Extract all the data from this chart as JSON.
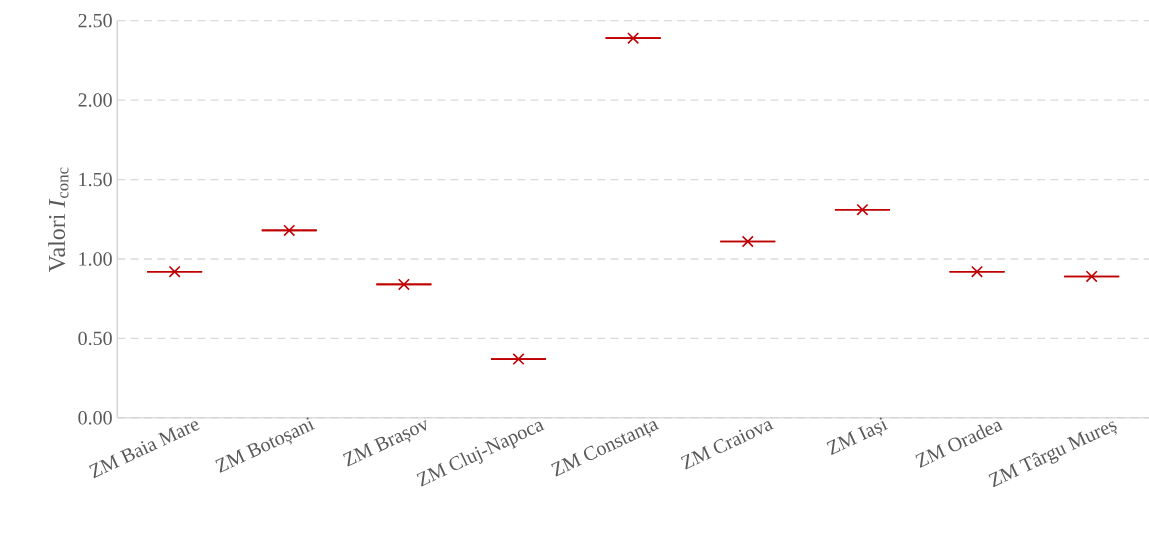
{
  "chart_data": {
    "type": "box",
    "ylabel": "Valori *I*$_{conc}$",
    "categories": [
      "ZM Baia Mare",
      "ZM Botoșani",
      "ZM Brașov",
      "ZM Cluj-Napoca",
      "ZM Constanța",
      "ZM Craiova",
      "ZM Iași",
      "ZM Oradea",
      "ZM Târgu Mureș"
    ],
    "boxes": [
      {
        "low": 0.92,
        "q1": 0.92,
        "median": 0.92,
        "q3": 0.92,
        "high": 0.92,
        "mean": 0.92
      },
      {
        "low": 1.18,
        "q1": 1.18,
        "median": 1.18,
        "q3": 1.18,
        "high": 1.18,
        "mean": 1.18
      },
      {
        "low": 0.84,
        "q1": 0.84,
        "median": 0.84,
        "q3": 0.84,
        "high": 0.84,
        "mean": 0.84
      },
      {
        "low": 0.37,
        "q1": 0.37,
        "median": 0.37,
        "q3": 0.37,
        "high": 0.37,
        "mean": 0.37
      },
      {
        "low": 2.39,
        "q1": 2.39,
        "median": 2.39,
        "q3": 2.39,
        "high": 2.39,
        "mean": 2.39
      },
      {
        "low": 1.11,
        "q1": 1.11,
        "median": 1.11,
        "q3": 1.11,
        "high": 1.11,
        "mean": 1.11
      },
      {
        "low": 1.31,
        "q1": 1.31,
        "median": 1.31,
        "q3": 1.31,
        "high": 1.31,
        "mean": 1.31
      },
      {
        "low": 0.92,
        "q1": 0.92,
        "median": 0.92,
        "q3": 0.92,
        "high": 0.92,
        "mean": 0.92
      },
      {
        "low": 0.89,
        "q1": 0.89,
        "median": 0.89,
        "q3": 0.89,
        "high": 0.89,
        "mean": 0.89
      }
    ],
    "color": "#c00000",
    "marker": "cross",
    "ylim": [
      0,
      2.5
    ],
    "yticks": [
      {
        "value": 0,
        "label": "0.00"
      },
      {
        "value": 0.5,
        "label": "0.50"
      },
      {
        "value": 1,
        "label": "1.00"
      },
      {
        "value": 1.5,
        "label": "1.50"
      },
      {
        "value": 2,
        "label": "2.00"
      },
      {
        "value": 2.5,
        "label": "2.50"
      }
    ],
    "grid": "y"
  }
}
